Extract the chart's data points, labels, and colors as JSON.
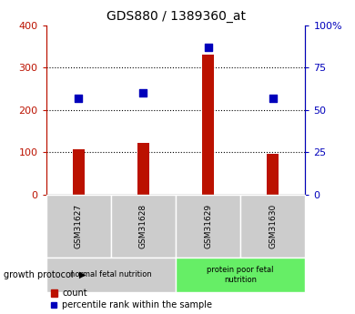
{
  "title": "GDS880 / 1389360_at",
  "samples": [
    "GSM31627",
    "GSM31628",
    "GSM31629",
    "GSM31630"
  ],
  "counts": [
    108,
    122,
    330,
    97
  ],
  "percentile_ranks": [
    57,
    60,
    87,
    57
  ],
  "left_ylim": [
    0,
    400
  ],
  "right_ylim": [
    0,
    100
  ],
  "left_yticks": [
    0,
    100,
    200,
    300,
    400
  ],
  "right_yticks": [
    0,
    25,
    50,
    75,
    100
  ],
  "right_yticklabels": [
    "0",
    "25",
    "50",
    "75",
    "100%"
  ],
  "bar_color": "#bb1100",
  "dot_color": "#0000bb",
  "grid_lines": [
    100,
    200,
    300
  ],
  "groups": [
    {
      "label": "normal fetal nutrition",
      "samples": [
        0,
        1
      ],
      "color": "#cccccc"
    },
    {
      "label": "protein poor fetal\nnutrition",
      "samples": [
        2,
        3
      ],
      "color": "#66ee66"
    }
  ],
  "group_box_color": "#88ee88",
  "sample_box_color": "#cccccc",
  "growth_protocol_label": "growth protocol",
  "legend_count_label": "count",
  "legend_percentile_label": "percentile rank within the sample",
  "bar_width": 0.18,
  "dot_size": 35
}
